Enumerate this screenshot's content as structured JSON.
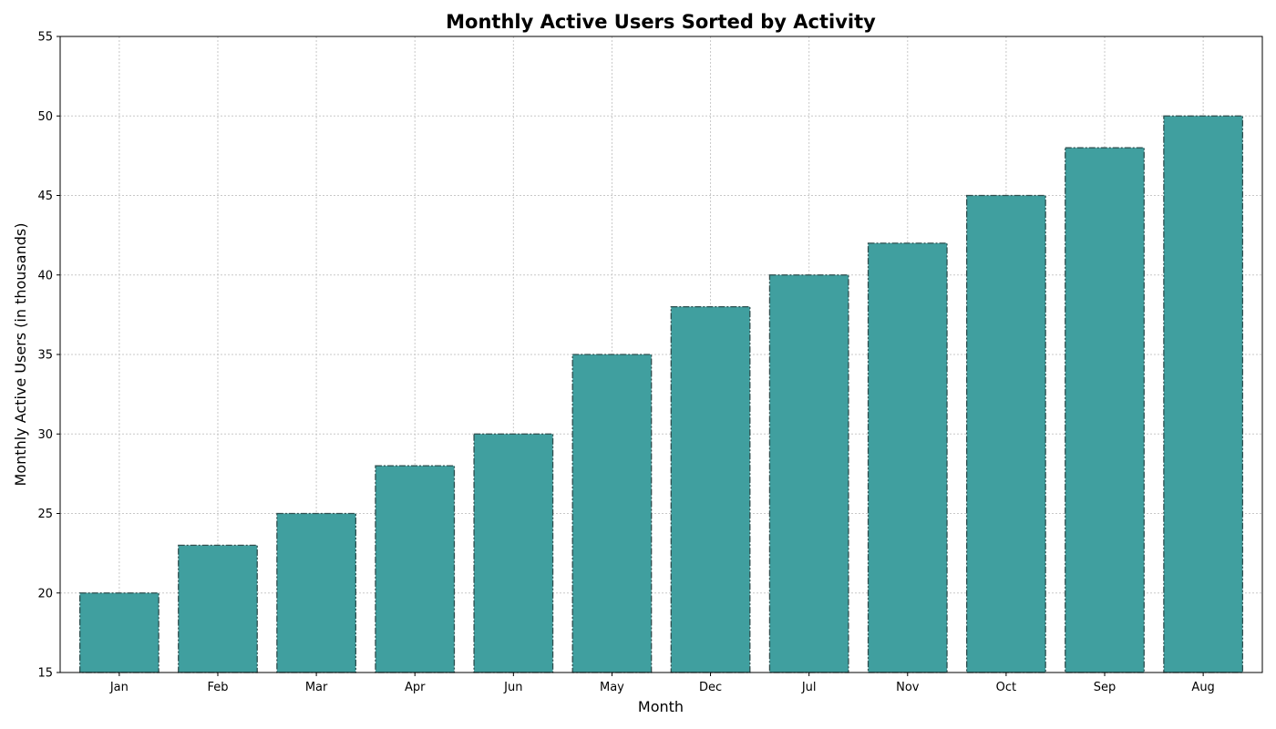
{
  "chart_data": {
    "type": "bar",
    "title": "Monthly Active Users Sorted by Activity",
    "xlabel": "Month",
    "ylabel": "Monthly Active Users (in thousands)",
    "categories": [
      "Jan",
      "Feb",
      "Mar",
      "Apr",
      "Jun",
      "May",
      "Dec",
      "Jul",
      "Nov",
      "Oct",
      "Sep",
      "Aug"
    ],
    "values": [
      20,
      23,
      25,
      28,
      30,
      35,
      38,
      40,
      42,
      45,
      48,
      50
    ],
    "ylim": [
      15,
      55
    ],
    "yticks": [
      "15",
      "20",
      "25",
      "30",
      "35",
      "40",
      "45",
      "50",
      "55"
    ],
    "grid": true,
    "legend": "none",
    "bar_color": "#409f9f",
    "edge_color": "#2f4f4f"
  }
}
